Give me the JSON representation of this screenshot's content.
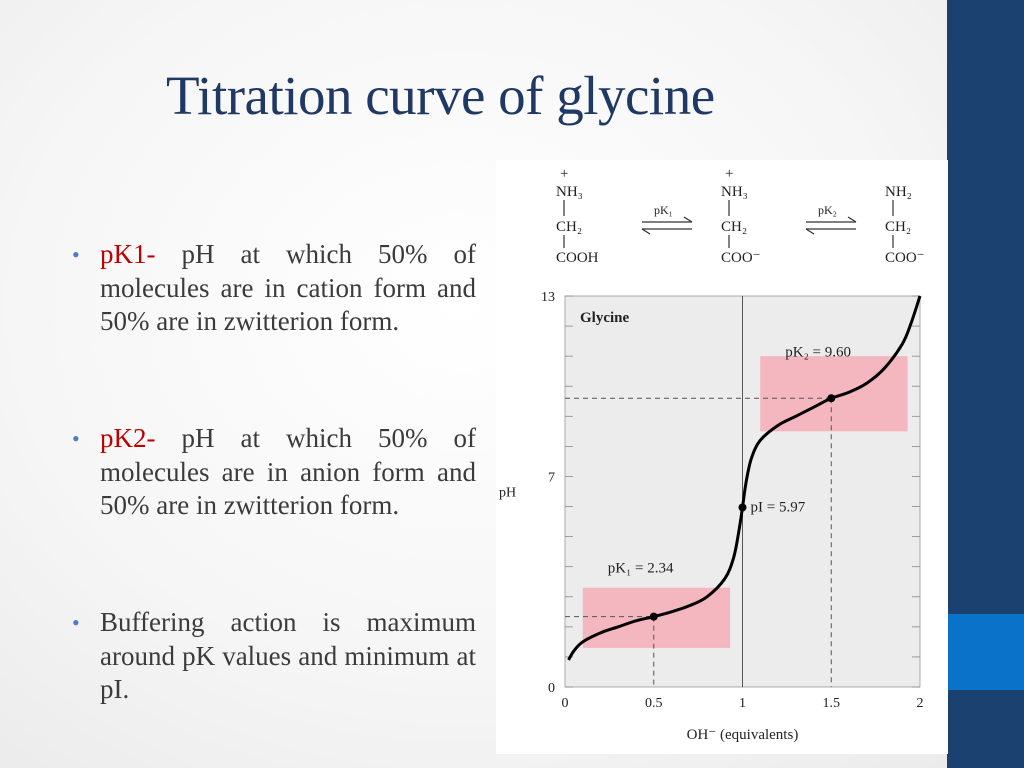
{
  "slide": {
    "title": "Titration curve of glycine"
  },
  "bullets": [
    {
      "term": "pK1",
      "dash": "-",
      "text": " pH at which 50% of molecules are in cation form and 50% are in zwitterion form."
    },
    {
      "term": "pK2",
      "dash": "-",
      "text": " pH at which 50% of molecules are in anion form and 50% are in zwitterion form."
    },
    {
      "text": "Buffering action is maximum around pK values and minimum at pI."
    }
  ],
  "figure": {
    "structures": [
      {
        "top_charge": "+",
        "amine": "NH₃",
        "middle": "CH₂",
        "bottom": "COOH"
      },
      {
        "top_charge": "+",
        "amine": "NH₃",
        "middle": "CH₂",
        "bottom": "COO⁻"
      },
      {
        "top_charge": "",
        "amine": "NH₂",
        "middle": "CH₂",
        "bottom": "COO⁻"
      }
    ],
    "arrows": [
      "pK₁",
      "pK₂"
    ],
    "colors": {
      "buffer_region": "#f4b6bf",
      "plot_bg": "#ececec",
      "curve": "#000000"
    }
  },
  "chart_data": {
    "type": "line",
    "title": "Glycine",
    "xlabel": "OH⁻ (equivalents)",
    "ylabel": "pH",
    "xlim": [
      0,
      2
    ],
    "ylim": [
      0,
      13
    ],
    "x_ticks": [
      "0",
      "0.5",
      "1",
      "1.5",
      "2"
    ],
    "y_ticks": [
      "0",
      "7",
      "13"
    ],
    "series": [
      {
        "points": [
          [
            0.02,
            0.9
          ],
          [
            0.05,
            1.2
          ],
          [
            0.1,
            1.5
          ],
          [
            0.2,
            1.8
          ],
          [
            0.3,
            2.0
          ],
          [
            0.4,
            2.2
          ],
          [
            0.5,
            2.34
          ],
          [
            0.6,
            2.5
          ],
          [
            0.7,
            2.7
          ],
          [
            0.8,
            3.0
          ],
          [
            0.9,
            3.6
          ],
          [
            0.95,
            4.3
          ],
          [
            0.98,
            5.2
          ],
          [
            1.0,
            5.97
          ],
          [
            1.02,
            6.8
          ],
          [
            1.05,
            7.6
          ],
          [
            1.1,
            8.2
          ],
          [
            1.2,
            8.7
          ],
          [
            1.3,
            9.0
          ],
          [
            1.4,
            9.3
          ],
          [
            1.5,
            9.6
          ],
          [
            1.6,
            9.8
          ],
          [
            1.7,
            10.1
          ],
          [
            1.8,
            10.6
          ],
          [
            1.9,
            11.4
          ],
          [
            1.95,
            12.1
          ],
          [
            2.0,
            13.0
          ]
        ]
      }
    ],
    "markers": [
      {
        "x": 0.5,
        "y": 2.34,
        "label": "pK₁ = 2.34"
      },
      {
        "x": 1.0,
        "y": 5.97,
        "label": "pI = 5.97"
      },
      {
        "x": 1.5,
        "y": 9.6,
        "label": "pK₂ = 9.60"
      }
    ],
    "buffer_regions": [
      {
        "x": [
          0.1,
          0.93
        ],
        "y": [
          1.3,
          3.3
        ]
      },
      {
        "x": [
          1.1,
          1.93
        ],
        "y": [
          8.5,
          11.0
        ]
      }
    ]
  }
}
